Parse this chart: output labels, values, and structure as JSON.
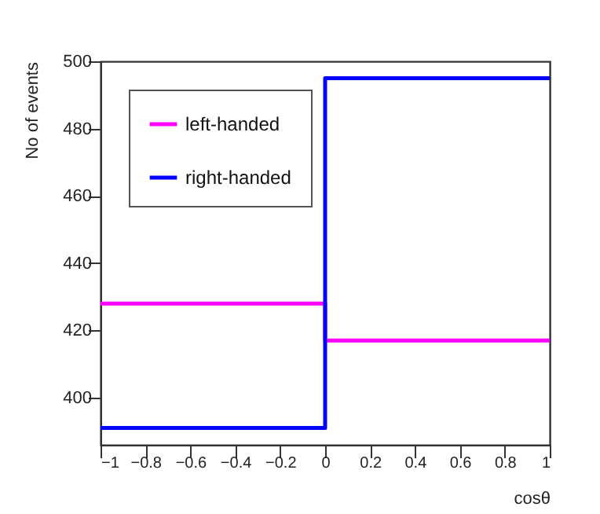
{
  "chart_data": {
    "type": "histogram",
    "xlabel": "cosθ",
    "ylabel": "No of events",
    "bins": [
      -1,
      0,
      1
    ],
    "series": [
      {
        "name": "left-handed",
        "color": "#ff00ff",
        "values": [
          428,
          417
        ]
      },
      {
        "name": "right-handed",
        "color": "#0000ff",
        "values": [
          391,
          495
        ]
      }
    ],
    "xlim": [
      -1,
      1
    ],
    "xticks": [
      -1,
      -0.8,
      -0.6,
      -0.4,
      -0.2,
      0,
      0.2,
      0.4,
      0.6,
      0.8,
      1
    ],
    "ylim": [
      386,
      500
    ],
    "yticks": [
      400,
      420,
      440,
      460,
      480,
      500
    ],
    "legend": "top left",
    "grid": false
  }
}
